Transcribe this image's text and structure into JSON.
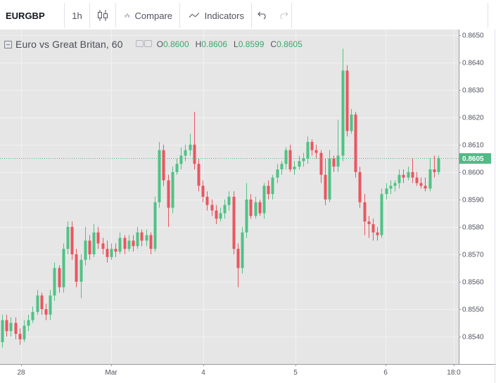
{
  "toolbar": {
    "symbol": "EURGBP",
    "interval": "1h",
    "compare_label": "Compare",
    "indicators_label": "Indicators"
  },
  "legend": {
    "title": "Euro vs Great Britan, 60",
    "open_key": "O",
    "open": "0.8600",
    "high_key": "H",
    "high": "0.8606",
    "low_key": "L",
    "low": "0.8599",
    "close_key": "C",
    "close": "0.8605"
  },
  "colors": {
    "up": "#4fc285",
    "down": "#e95660",
    "background": "#e6e6e6",
    "grid": "#f2f2f2",
    "last_price_line": "#53b987"
  },
  "chart_data": {
    "type": "candlestick",
    "symbol": "EURGBP",
    "y_ticks": [
      "0.8540",
      "0.8550",
      "0.8560",
      "0.8570",
      "0.8580",
      "0.8590",
      "0.8600",
      "0.8610",
      "0.8620",
      "0.8630",
      "0.8640",
      "0.8650"
    ],
    "ylim": [
      0.853,
      0.8652
    ],
    "x_ticks": [
      "28",
      "Mar",
      "4",
      "5",
      "6",
      "18:0"
    ],
    "last_price": "0.8605",
    "candles": [
      [
        0.8538,
        0.8546,
        0.8548,
        0.8536
      ],
      [
        0.8546,
        0.8542,
        0.8548,
        0.854
      ],
      [
        0.8542,
        0.8545,
        0.8547,
        0.854
      ],
      [
        0.8545,
        0.8541,
        0.8547,
        0.8539
      ],
      [
        0.8541,
        0.8539,
        0.8543,
        0.8537
      ],
      [
        0.8539,
        0.8544,
        0.8546,
        0.8538
      ],
      [
        0.8544,
        0.8546,
        0.8548,
        0.8542
      ],
      [
        0.8546,
        0.8549,
        0.8551,
        0.8545
      ],
      [
        0.8549,
        0.8555,
        0.8557,
        0.8548
      ],
      [
        0.8555,
        0.855,
        0.8556,
        0.8548
      ],
      [
        0.855,
        0.8548,
        0.8552,
        0.8546
      ],
      [
        0.8548,
        0.8555,
        0.8557,
        0.8546
      ],
      [
        0.8555,
        0.8565,
        0.8567,
        0.8553
      ],
      [
        0.8565,
        0.8558,
        0.8566,
        0.8556
      ],
      [
        0.8558,
        0.8572,
        0.8574,
        0.8556
      ],
      [
        0.8572,
        0.858,
        0.8582,
        0.857
      ],
      [
        0.858,
        0.857,
        0.8582,
        0.8568
      ],
      [
        0.857,
        0.856,
        0.8572,
        0.8558
      ],
      [
        0.856,
        0.8568,
        0.857,
        0.8554
      ],
      [
        0.8568,
        0.8575,
        0.858,
        0.8566
      ],
      [
        0.8575,
        0.857,
        0.8577,
        0.8568
      ],
      [
        0.857,
        0.8578,
        0.8581,
        0.8569
      ],
      [
        0.8578,
        0.8574,
        0.858,
        0.8572
      ],
      [
        0.8574,
        0.8572,
        0.8576,
        0.857
      ],
      [
        0.8572,
        0.8569,
        0.8575,
        0.8567
      ],
      [
        0.8569,
        0.8572,
        0.8574,
        0.8568
      ],
      [
        0.8572,
        0.8571,
        0.8574,
        0.8569
      ],
      [
        0.8571,
        0.8576,
        0.8578,
        0.857
      ],
      [
        0.8576,
        0.8572,
        0.8577,
        0.857
      ],
      [
        0.8572,
        0.8575,
        0.8577,
        0.8571
      ],
      [
        0.8575,
        0.8573,
        0.8577,
        0.8571
      ],
      [
        0.8573,
        0.8578,
        0.858,
        0.8572
      ],
      [
        0.8578,
        0.8575,
        0.8579,
        0.8573
      ],
      [
        0.8575,
        0.8577,
        0.8579,
        0.8573
      ],
      [
        0.8577,
        0.8572,
        0.8578,
        0.857
      ],
      [
        0.8572,
        0.8589,
        0.8591,
        0.8571
      ],
      [
        0.8589,
        0.8608,
        0.8611,
        0.8587
      ],
      [
        0.8608,
        0.8597,
        0.861,
        0.8595
      ],
      [
        0.8597,
        0.8587,
        0.8599,
        0.858
      ],
      [
        0.8587,
        0.86,
        0.8602,
        0.8585
      ],
      [
        0.86,
        0.8603,
        0.8605,
        0.8599
      ],
      [
        0.8603,
        0.8606,
        0.8609,
        0.8601
      ],
      [
        0.8606,
        0.8608,
        0.861,
        0.8604
      ],
      [
        0.8608,
        0.861,
        0.8614,
        0.8606
      ],
      [
        0.861,
        0.8603,
        0.8622,
        0.8601
      ],
      [
        0.8603,
        0.8595,
        0.8605,
        0.8593
      ],
      [
        0.8595,
        0.8591,
        0.8597,
        0.8589
      ],
      [
        0.8591,
        0.8588,
        0.8593,
        0.8586
      ],
      [
        0.8588,
        0.8586,
        0.859,
        0.8584
      ],
      [
        0.8586,
        0.8583,
        0.8588,
        0.8581
      ],
      [
        0.8583,
        0.8585,
        0.8587,
        0.8582
      ],
      [
        0.8585,
        0.8588,
        0.859,
        0.8583
      ],
      [
        0.8588,
        0.8591,
        0.8593,
        0.8586
      ],
      [
        0.8591,
        0.8572,
        0.8593,
        0.857
      ],
      [
        0.8572,
        0.8565,
        0.8574,
        0.8558
      ],
      [
        0.8565,
        0.8578,
        0.858,
        0.8563
      ],
      [
        0.8578,
        0.859,
        0.8596,
        0.8576
      ],
      [
        0.859,
        0.8584,
        0.8592,
        0.8583
      ],
      [
        0.8584,
        0.8589,
        0.8591,
        0.8583
      ],
      [
        0.8589,
        0.8585,
        0.859,
        0.8584
      ],
      [
        0.8585,
        0.8595,
        0.8596,
        0.8583
      ],
      [
        0.8595,
        0.8592,
        0.8597,
        0.859
      ],
      [
        0.8592,
        0.8598,
        0.8599,
        0.859
      ],
      [
        0.8598,
        0.8601,
        0.8603,
        0.8596
      ],
      [
        0.8601,
        0.8603,
        0.8604,
        0.8599
      ],
      [
        0.8603,
        0.8608,
        0.8609,
        0.8601
      ],
      [
        0.8608,
        0.8601,
        0.861,
        0.86
      ],
      [
        0.8601,
        0.8602,
        0.8604,
        0.8599
      ],
      [
        0.8602,
        0.8604,
        0.8606,
        0.8601
      ],
      [
        0.8604,
        0.8605,
        0.8607,
        0.8602
      ],
      [
        0.8605,
        0.8611,
        0.8613,
        0.8603
      ],
      [
        0.8611,
        0.8608,
        0.8612,
        0.8606
      ],
      [
        0.8608,
        0.8607,
        0.861,
        0.8605
      ],
      [
        0.8607,
        0.8599,
        0.8608,
        0.8596
      ],
      [
        0.8599,
        0.859,
        0.8605,
        0.8588
      ],
      [
        0.859,
        0.8605,
        0.8608,
        0.8589
      ],
      [
        0.8605,
        0.8602,
        0.8606,
        0.86
      ],
      [
        0.8602,
        0.8606,
        0.8619,
        0.86
      ],
      [
        0.8606,
        0.8637,
        0.8645,
        0.8604
      ],
      [
        0.8637,
        0.8615,
        0.8639,
        0.8613
      ],
      [
        0.8615,
        0.8621,
        0.8623,
        0.8614
      ],
      [
        0.8621,
        0.86,
        0.8622,
        0.8598
      ],
      [
        0.86,
        0.8589,
        0.8602,
        0.8587
      ],
      [
        0.8589,
        0.8582,
        0.8592,
        0.8577
      ],
      [
        0.8582,
        0.8581,
        0.8584,
        0.8576
      ],
      [
        0.8581,
        0.8578,
        0.8583,
        0.8575
      ],
      [
        0.8578,
        0.8577,
        0.858,
        0.8575
      ],
      [
        0.8577,
        0.8592,
        0.8594,
        0.8576
      ],
      [
        0.8592,
        0.8594,
        0.8596,
        0.859
      ],
      [
        0.8594,
        0.8595,
        0.8597,
        0.8592
      ],
      [
        0.8595,
        0.8596,
        0.8597,
        0.8593
      ],
      [
        0.8596,
        0.8599,
        0.8601,
        0.8594
      ],
      [
        0.8599,
        0.8598,
        0.8601,
        0.8596
      ],
      [
        0.8598,
        0.86,
        0.8602,
        0.8597
      ],
      [
        0.86,
        0.8598,
        0.8605,
        0.8596
      ],
      [
        0.8598,
        0.8596,
        0.86,
        0.8595
      ],
      [
        0.8596,
        0.8595,
        0.8598,
        0.8594
      ],
      [
        0.8595,
        0.8594,
        0.8598,
        0.8593
      ],
      [
        0.8594,
        0.8601,
        0.8605,
        0.8593
      ],
      [
        0.8601,
        0.86,
        0.8606,
        0.8598
      ],
      [
        0.86,
        0.8605,
        0.8606,
        0.8599
      ]
    ]
  }
}
